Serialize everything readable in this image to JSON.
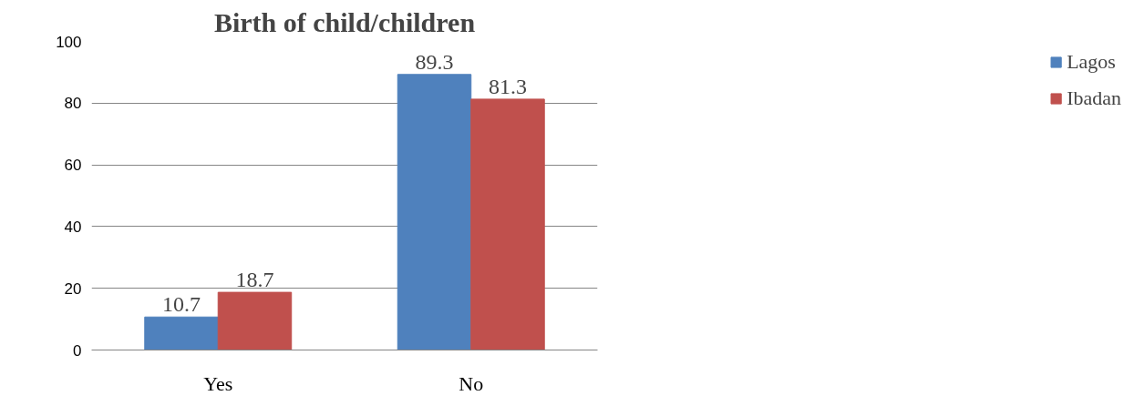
{
  "chart_data": {
    "type": "bar",
    "title": "Birth of child/children",
    "categories": [
      "Yes",
      "No"
    ],
    "series": [
      {
        "name": "Lagos",
        "color": "#4f81bd",
        "values": [
          10.7,
          89.3
        ]
      },
      {
        "name": "Ibadan",
        "color": "#c0504d",
        "values": [
          18.7,
          81.3
        ]
      }
    ],
    "ylim": [
      0,
      100
    ],
    "yticks": [
      0,
      20,
      40,
      60,
      80,
      100
    ],
    "grid": "y",
    "legend": "right",
    "data_labels": true
  }
}
